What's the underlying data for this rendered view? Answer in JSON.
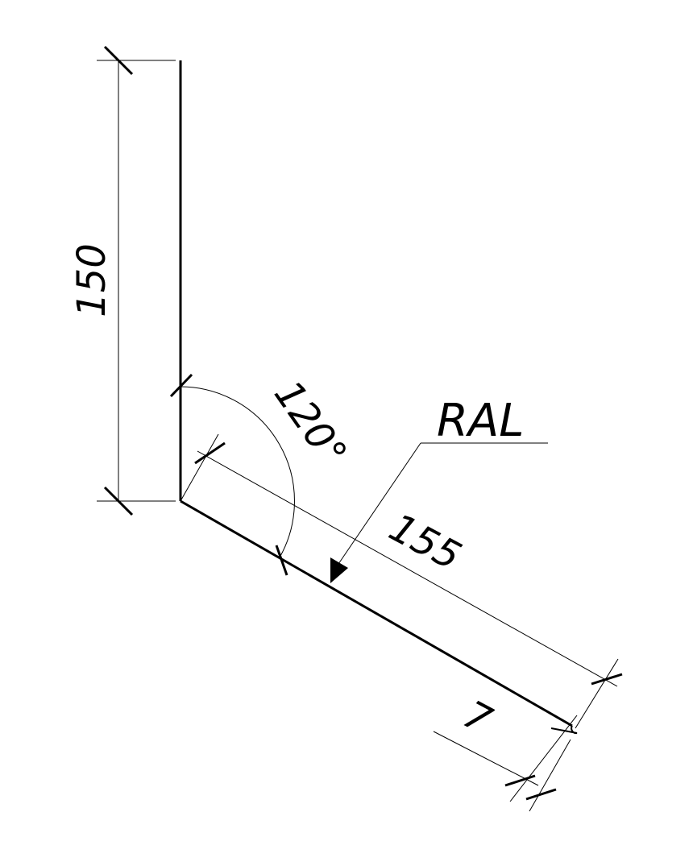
{
  "dimensions": {
    "vertical_length": "150",
    "bend_angle": "120°",
    "slant_length": "155",
    "hem_length": "7"
  },
  "label": {
    "coating": "RAL"
  }
}
